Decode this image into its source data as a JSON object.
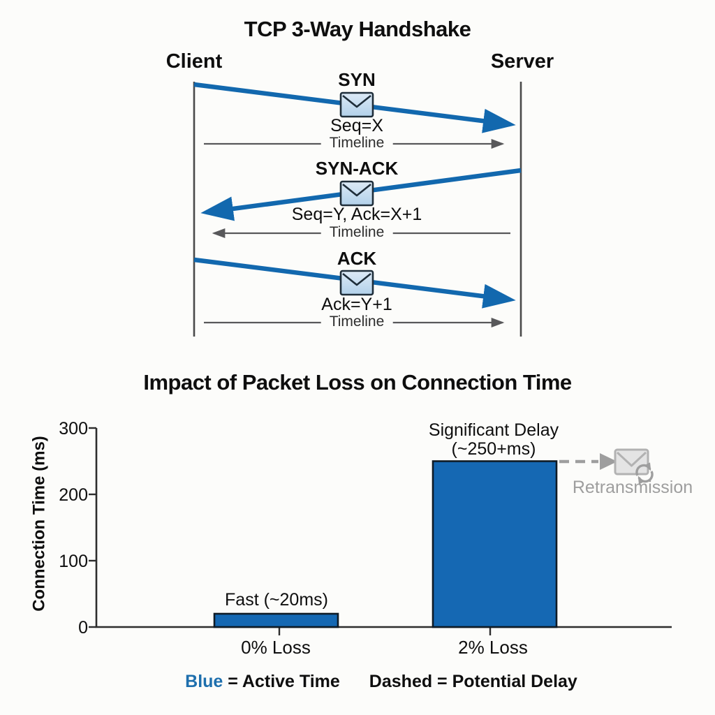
{
  "diagram": {
    "title": "TCP 3-Way Handshake",
    "client_label": "Client",
    "server_label": "Server",
    "arrow_color": "#1268ae",
    "messages": [
      {
        "name": "SYN",
        "detail": "Seq=X",
        "timeline": "Timeline",
        "direction": "client-to-server"
      },
      {
        "name": "SYN-ACK",
        "detail": "Seq=Y, Ack=X+1",
        "timeline": "Timeline",
        "direction": "server-to-client"
      },
      {
        "name": "ACK",
        "detail": "Ack=Y+1",
        "timeline": "Timeline",
        "direction": "client-to-server"
      }
    ]
  },
  "chart_data": {
    "type": "bar",
    "title": "Impact of Packet Loss on Connection Time",
    "ylabel": "Connection Time (ms)",
    "xlabel": "",
    "categories": [
      "0% Loss",
      "2% Loss"
    ],
    "values": [
      20,
      250
    ],
    "ylim": [
      0,
      300
    ],
    "yticks": [
      "300",
      "200",
      "100",
      "0"
    ],
    "grid": false,
    "bar_color": "#1568b3",
    "bar1_label": "Fast (~20ms)",
    "bar2_label_line1": "Significant Delay",
    "bar2_label_line2": "(~250+ms)",
    "retransmission_label": "Retransmission",
    "legend": {
      "blue_word": "Blue",
      "blue_rest": " = Active Time",
      "dashed_text": "Dashed = Potential Delay"
    }
  }
}
